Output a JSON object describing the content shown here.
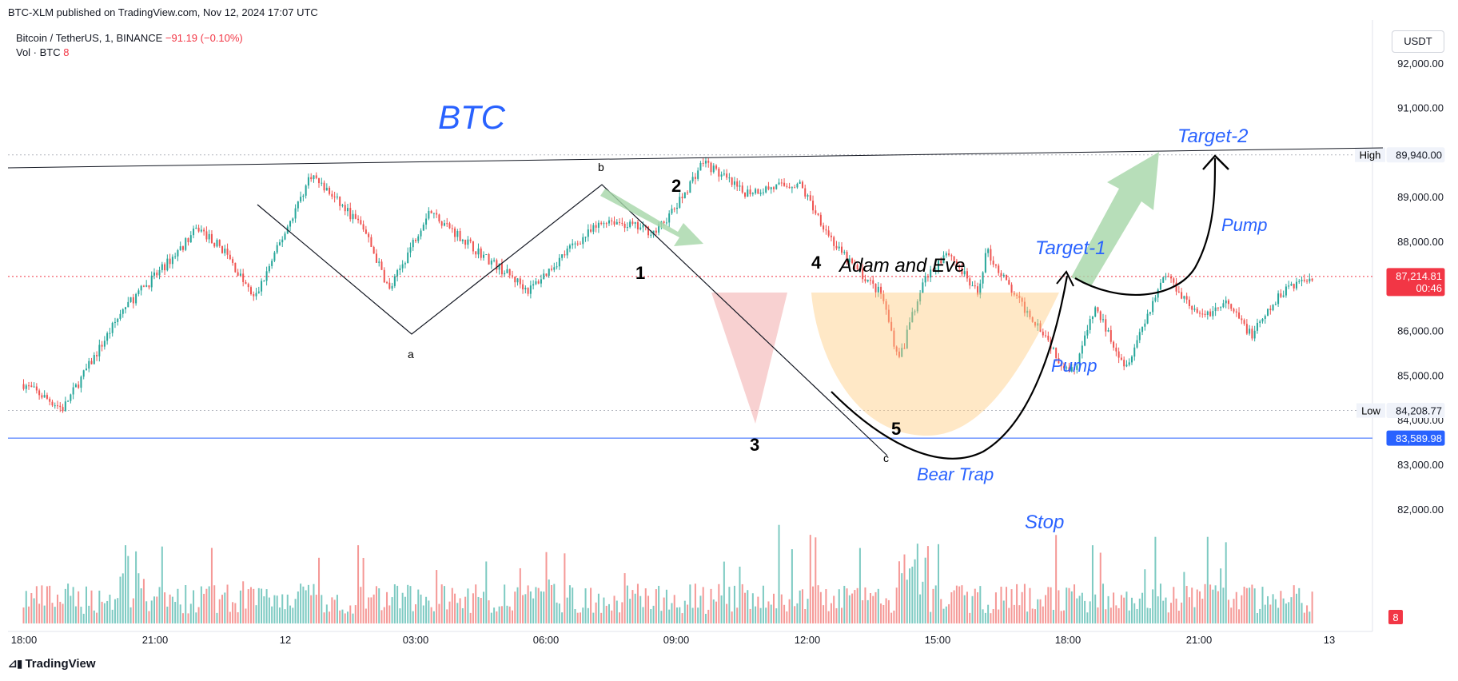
{
  "header": {
    "publish_text": "BTC-XLM published on TradingView.com, Nov 12, 2024 17:07 UTC",
    "symbol": "Bitcoin / TetherUS, 1, BINANCE",
    "change": "−91.19 (−0.10%)",
    "volume_label": "Vol · BTC",
    "volume_value": "8",
    "currency": "USDT"
  },
  "footer": {
    "brand": "TradingView"
  },
  "colors": {
    "up": "#26a69a",
    "down": "#ef5350",
    "annotation_blue": "#2962ff",
    "price_badge": "#f23645",
    "stop_line": "#2962ff",
    "arrow_green": "#a5d6a7",
    "cup_fill": "#ffcc80",
    "triangle_fill": "#ef9a9a"
  },
  "chart_data": {
    "type": "candlestick",
    "price_axis": {
      "ticks": [
        {
          "value": 92000,
          "label": "92,000.00"
        },
        {
          "value": 91000,
          "label": "91,000.00"
        },
        {
          "value": 89000,
          "label": "89,000.00"
        },
        {
          "value": 88000,
          "label": "88,000.00"
        },
        {
          "value": 86000,
          "label": "86,000.00"
        },
        {
          "value": 85000,
          "label": "85,000.00"
        },
        {
          "value": 84000,
          "label": "84,000.00"
        },
        {
          "value": 83000,
          "label": "83,000.00"
        },
        {
          "value": 82000,
          "label": "82,000.00"
        }
      ],
      "range": [
        81350,
        93100
      ]
    },
    "time_axis": {
      "ticks": [
        "18:00",
        "21:00",
        "12",
        "03:00",
        "06:00",
        "09:00",
        "12:00",
        "15:00",
        "18:00",
        "21:00",
        "13"
      ]
    },
    "markers": {
      "high": {
        "label": "High",
        "value": 89940,
        "value_label": "89,940.00"
      },
      "low": {
        "label": "Low",
        "value": 84208.77,
        "value_label": "84,208.77"
      },
      "last_price": {
        "value": 87214.81,
        "value_label": "87,214.81",
        "countdown": "00:46"
      },
      "stop": {
        "value": 83589.98,
        "value_label": "83,589.98"
      },
      "volume_badge": "8"
    },
    "price_path": [
      {
        "t": 0.0,
        "p": 84800
      },
      {
        "t": 0.9,
        "p": 84250
      },
      {
        "t": 2.3,
        "p": 86500
      },
      {
        "t": 3.2,
        "p": 87400
      },
      {
        "t": 4.0,
        "p": 88300
      },
      {
        "t": 4.6,
        "p": 87800
      },
      {
        "t": 5.3,
        "p": 86700
      },
      {
        "t": 6.6,
        "p": 89500
      },
      {
        "t": 7.8,
        "p": 88300
      },
      {
        "t": 8.4,
        "p": 86900
      },
      {
        "t": 9.3,
        "p": 88700
      },
      {
        "t": 10.4,
        "p": 87800
      },
      {
        "t": 11.6,
        "p": 86900
      },
      {
        "t": 12.6,
        "p": 87900
      },
      {
        "t": 13.4,
        "p": 88500
      },
      {
        "t": 14.5,
        "p": 88200
      },
      {
        "t": 15.0,
        "p": 88800
      },
      {
        "t": 15.6,
        "p": 89800
      },
      {
        "t": 16.5,
        "p": 89100
      },
      {
        "t": 17.8,
        "p": 89300
      },
      {
        "t": 18.7,
        "p": 87800
      },
      {
        "t": 19.7,
        "p": 86800
      },
      {
        "t": 20.1,
        "p": 85300
      },
      {
        "t": 20.6,
        "p": 87000
      },
      {
        "t": 21.2,
        "p": 87800
      },
      {
        "t": 21.9,
        "p": 86800
      },
      {
        "t": 22.1,
        "p": 87800
      },
      {
        "t": 22.8,
        "p": 86700
      },
      {
        "t": 23.4,
        "p": 86000
      },
      {
        "t": 23.8,
        "p": 85300
      },
      {
        "t": 24.1,
        "p": 85100
      },
      {
        "t": 24.6,
        "p": 86500
      },
      {
        "t": 25.3,
        "p": 85200
      },
      {
        "t": 26.2,
        "p": 87300
      },
      {
        "t": 27.0,
        "p": 86300
      },
      {
        "t": 27.6,
        "p": 86600
      },
      {
        "t": 28.2,
        "p": 85900
      },
      {
        "t": 29.0,
        "p": 87000
      },
      {
        "t": 29.6,
        "p": 87200
      }
    ],
    "annotations": {
      "title": "BTC",
      "wave_labels": [
        "a",
        "b",
        "c",
        "1",
        "2",
        "3",
        "4",
        "5"
      ],
      "pattern_label": "Adam and Eve",
      "target_1": "Target-1",
      "target_2": "Target-2",
      "pump_1": "Pump",
      "pump_2": "Pump",
      "bear_trap": "Bear Trap",
      "stop": "Stop"
    }
  }
}
